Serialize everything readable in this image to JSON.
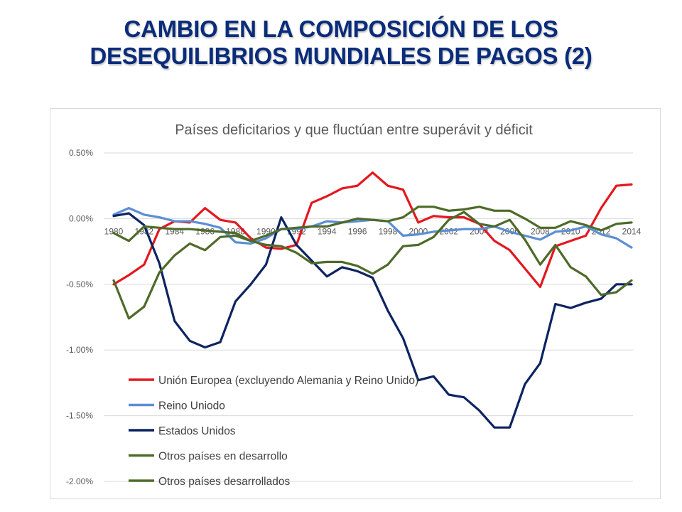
{
  "slide": {
    "title_line1": "CAMBIO EN LA COMPOSICIÓN DE LOS",
    "title_line2": "DESEQUILIBRIOS MUNDIALES DE PAGOS (2)"
  },
  "chart_data": {
    "type": "line",
    "title": "Países deficitarios y que fluctúan entre superávit y déficit",
    "xlabel": "",
    "ylabel": "",
    "ylim": [
      -2.0,
      0.5
    ],
    "yticks": [
      "0.50%",
      "0.00%",
      "-0.50%",
      "-1.00%",
      "-1.50%",
      "-2.00%"
    ],
    "xticks": [
      "1980",
      "1982",
      "1984",
      "1986",
      "1988",
      "1990",
      "1992",
      "1994",
      "1996",
      "1998",
      "2000",
      "2002",
      "2004",
      "2006",
      "2008",
      "2010",
      "2012",
      "2014"
    ],
    "grid": true,
    "legend_position": "bottom-left",
    "x": [
      1980,
      1981,
      1982,
      1983,
      1984,
      1985,
      1986,
      1987,
      1988,
      1989,
      1990,
      1991,
      1992,
      1993,
      1994,
      1995,
      1996,
      1997,
      1998,
      1999,
      2000,
      2001,
      2002,
      2003,
      2004,
      2005,
      2006,
      2007,
      2008,
      2009,
      2010,
      2011,
      2012,
      2013,
      2014
    ],
    "series": [
      {
        "name": "Unión Europea (excluyendo Alemania y Reino Unido)",
        "color": "#e3181f",
        "values": [
          -0.5,
          -0.43,
          -0.35,
          -0.08,
          -0.02,
          -0.03,
          0.08,
          -0.01,
          -0.03,
          -0.15,
          -0.22,
          -0.23,
          -0.2,
          0.12,
          0.17,
          0.23,
          0.25,
          0.35,
          0.25,
          0.22,
          -0.03,
          0.02,
          0.01,
          0.01,
          -0.04,
          -0.17,
          -0.24,
          -0.38,
          -0.52,
          -0.21,
          -0.17,
          -0.13,
          0.08,
          0.25,
          0.26
        ]
      },
      {
        "name": "Reino Uniodo",
        "color": "#5b8fd4",
        "values": [
          0.03,
          0.08,
          0.03,
          0.01,
          -0.02,
          -0.02,
          -0.04,
          -0.07,
          -0.18,
          -0.19,
          -0.15,
          -0.08,
          -0.08,
          -0.06,
          -0.02,
          -0.03,
          -0.02,
          -0.01,
          -0.02,
          -0.13,
          -0.12,
          -0.1,
          -0.09,
          -0.08,
          -0.08,
          -0.06,
          -0.1,
          -0.13,
          -0.16,
          -0.1,
          -0.09,
          -0.06,
          -0.12,
          -0.15,
          -0.22
        ]
      },
      {
        "name": "Estados Unidos",
        "color": "#0d2461",
        "values": [
          0.02,
          0.04,
          -0.05,
          -0.34,
          -0.78,
          -0.93,
          -0.98,
          -0.94,
          -0.63,
          -0.5,
          -0.35,
          0.01,
          -0.2,
          -0.32,
          -0.44,
          -0.37,
          -0.4,
          -0.45,
          -0.7,
          -0.91,
          -1.23,
          -1.2,
          -1.34,
          -1.36,
          -1.46,
          -1.59,
          -1.59,
          -1.26,
          -1.1,
          -0.65,
          -0.68,
          -0.64,
          -0.61,
          -0.5,
          -0.5
        ]
      },
      {
        "name": "Otros países en desarrollo",
        "color": "#4e6b29",
        "values": [
          -0.47,
          -0.76,
          -0.67,
          -0.41,
          -0.28,
          -0.19,
          -0.24,
          -0.14,
          -0.13,
          -0.17,
          -0.2,
          -0.21,
          -0.26,
          -0.34,
          -0.33,
          -0.33,
          -0.36,
          -0.42,
          -0.35,
          -0.21,
          -0.2,
          -0.14,
          -0.01,
          0.05,
          -0.04,
          -0.06,
          -0.01,
          -0.16,
          -0.35,
          -0.2,
          -0.37,
          -0.44,
          -0.58,
          -0.56,
          -0.47
        ]
      },
      {
        "name": "Otros países desarrollados",
        "color": "#4e6b29",
        "values": [
          -0.11,
          -0.17,
          -0.06,
          -0.07,
          -0.08,
          -0.08,
          -0.09,
          -0.1,
          -0.11,
          -0.17,
          -0.13,
          -0.08,
          -0.07,
          -0.06,
          -0.06,
          -0.03,
          0.0,
          -0.01,
          -0.02,
          0.01,
          0.09,
          0.09,
          0.06,
          0.07,
          0.09,
          0.06,
          0.06,
          0.0,
          -0.07,
          -0.07,
          -0.02,
          -0.05,
          -0.09,
          -0.04,
          -0.03
        ]
      }
    ]
  }
}
